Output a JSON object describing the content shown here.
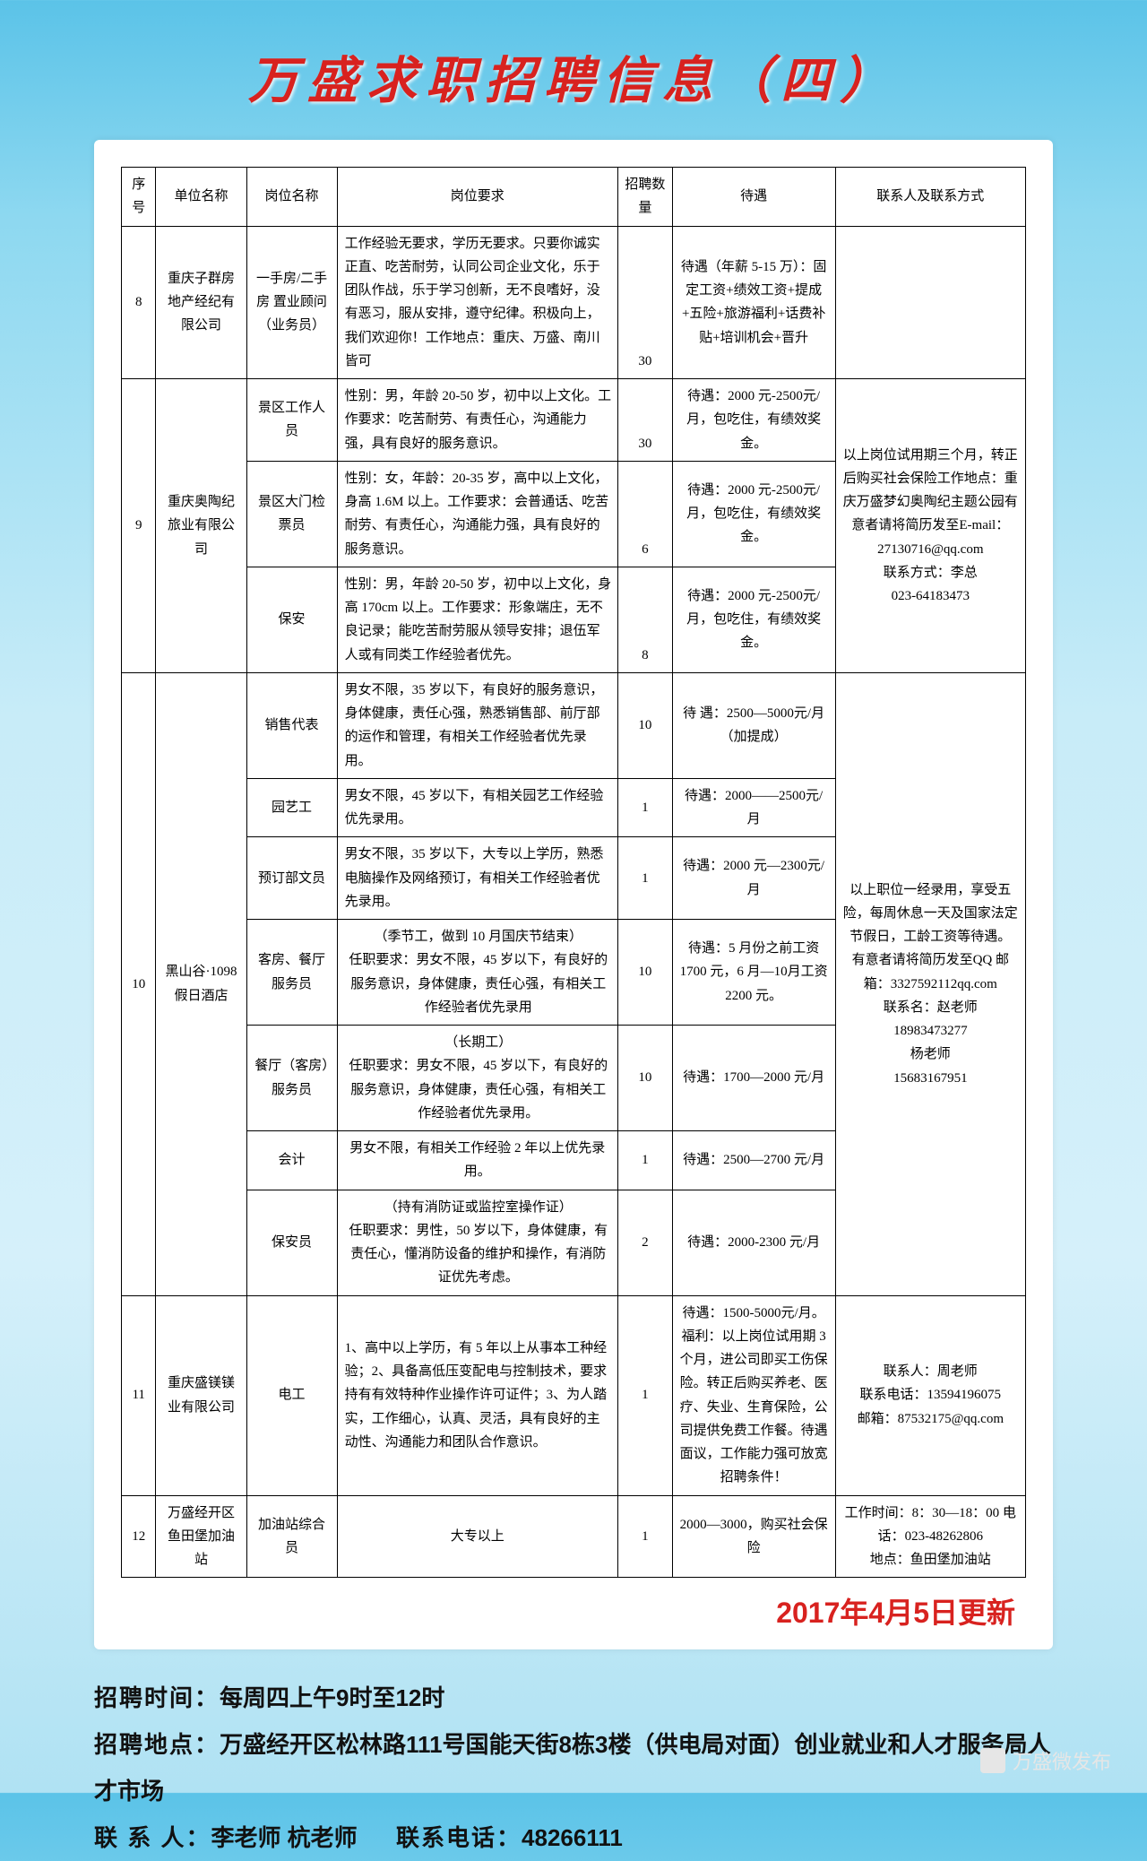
{
  "title": "万盛求职招聘信息（四）",
  "headers": {
    "seq": "序号",
    "company": "单位名称",
    "position": "岗位名称",
    "requirement": "岗位要求",
    "number": "招聘数量",
    "pay": "待遇",
    "contact": "联系人及联系方式"
  },
  "rows": {
    "r8": {
      "seq": "8",
      "company": "重庆子群房地产经纪有限公司",
      "position": "一手房/二手房 置业顾问（业务员）",
      "req": "工作经验无要求，学历无要求。只要你诚实正直、吃苦耐劳，认同公司企业文化，乐于团队作战，乐于学习创新，无不良嗜好，没有恶习，服从安排，遵守纪律。积极向上，我们欢迎你！工作地点：重庆、万盛、南川皆可",
      "num": "30",
      "pay": "待遇（年薪 5-15 万）：固定工资+绩效工资+提成+五险+旅游福利+话费补贴+培训机会+晋升",
      "contact": ""
    },
    "r9": {
      "seq": "9",
      "company": "重庆奥陶纪旅业有限公司",
      "p1": {
        "position": "景区工作人员",
        "req": "性别：男，年龄 20-50 岁，初中以上文化。工作要求：吃苦耐劳、有责任心，沟通能力强，具有良好的服务意识。",
        "num": "30",
        "pay": "待遇：2000 元-2500元/月，包吃住，有绩效奖金。"
      },
      "p2": {
        "position": "景区大门检票员",
        "req": "性别：女，年龄：20-35 岁，高中以上文化，身高 1.6M 以上。工作要求：会普通话、吃苦耐劳、有责任心，沟通能力强，具有良好的服务意识。",
        "num": "6",
        "pay": "待遇：2000 元-2500元/月，包吃住，有绩效奖金。"
      },
      "p3": {
        "position": "保安",
        "req": "性别：男，年龄 20-50 岁，初中以上文化，身高 170cm 以上。工作要求：形象端庄，无不良记录；能吃苦耐劳服从领导安排；退伍军人或有同类工作经验者优先。",
        "num": "8",
        "pay": "待遇：2000 元-2500元/月，包吃住，有绩效奖金。"
      },
      "contact": "以上岗位试用期三个月，转正后购买社会保险工作地点：重庆万盛梦幻奥陶纪主题公园有意者请将简历发至E-mail：27130716@qq.com\n联系方式：李总\n023-64183473"
    },
    "r10": {
      "seq": "10",
      "company": "黑山谷·1098 假日酒店",
      "p1": {
        "position": "销售代表",
        "req": "男女不限，35 岁以下，有良好的服务意识，身体健康，责任心强，熟悉销售部、前厅部的运作和管理，有相关工作经验者优先录用。",
        "num": "10",
        "pay": "待 遇：2500—5000元/月（加提成）"
      },
      "p2": {
        "position": "园艺工",
        "req": "男女不限，45 岁以下，有相关园艺工作经验优先录用。",
        "num": "1",
        "pay": "待遇：2000——2500元/月"
      },
      "p3": {
        "position": "预订部文员",
        "req": "男女不限，35 岁以下，大专以上学历，熟悉电脑操作及网络预订，有相关工作经验者优先录用。",
        "num": "1",
        "pay": "待遇：2000 元—2300元/月"
      },
      "p4": {
        "position": "客房、餐厅服务员",
        "req": "（季节工，做到 10 月国庆节结束）\n任职要求：男女不限，45 岁以下，有良好的服务意识，身体健康，责任心强，有相关工作经验者优先录用",
        "num": "10",
        "pay": "待遇：5 月份之前工资 1700 元，6 月—10月工资 2200 元。"
      },
      "p5": {
        "position": "餐厅（客房）服务员",
        "req": "（长期工）\n任职要求：男女不限，45 岁以下，有良好的服务意识，身体健康，责任心强，有相关工作经验者优先录用。",
        "num": "10",
        "pay": "待遇：1700—2000 元/月"
      },
      "p6": {
        "position": "会计",
        "req": "男女不限，有相关工作经验 2 年以上优先录用。",
        "num": "1",
        "pay": "待遇：2500—2700 元/月"
      },
      "p7": {
        "position": "保安员",
        "req": "（持有消防证或监控室操作证）\n任职要求：男性，50 岁以下，身体健康，有责任心，懂消防设备的维护和操作，有消防证优先考虑。",
        "num": "2",
        "pay": "待遇：2000-2300 元/月"
      },
      "contact": "以上职位一经录用，享受五险，每周休息一天及国家法定节假日，工龄工资等待遇。\n有意者请将简历发至QQ 邮箱：3327592112qq.com\n联系名：赵老师\n18983473277\n杨老师\n15683167951"
    },
    "r11": {
      "seq": "11",
      "company": "重庆盛镁镁业有限公司",
      "position": "电工",
      "req": "1、高中以上学历，有 5 年以上从事本工种经验；2、具备高低压变配电与控制技术，要求持有有效特种作业操作许可证件；3、为人踏实，工作细心，认真、灵活，具有良好的主动性、沟通能力和团队合作意识。",
      "num": "1",
      "pay": "待遇：1500-5000元/月。福利：以上岗位试用期 3 个月，进公司即买工伤保险。转正后购买养老、医疗、失业、生育保险，公司提供免费工作餐。待遇面议，工作能力强可放宽招聘条件！",
      "contact": "联系人：周老师\n联系电话：13594196075\n邮箱：87532175@qq.com"
    },
    "r12": {
      "seq": "12",
      "company": "万盛经开区鱼田堡加油站",
      "position": "加油站综合员",
      "req": "大专以上",
      "num": "1",
      "pay": "2000—3000，购买社会保险",
      "contact": "工作时间：8：30—18：00 电话：023-48262806\n地点：鱼田堡加油站"
    }
  },
  "update": "2017年4月5日更新",
  "footer": {
    "l1_label": "招聘时间：",
    "l1_value": "每周四上午9时至12时",
    "l2_label": "招聘地点：",
    "l2_value": "万盛经开区松林路111号国能天街8栋3楼（供电局对面）创业就业和人才服务局人才市场",
    "l3_label": "联 系 人：",
    "l3_value": "李老师 杭老师",
    "l3_tel_label": "联系电话：",
    "l3_tel_value": "48266111"
  },
  "watermark": "万盛微发布"
}
